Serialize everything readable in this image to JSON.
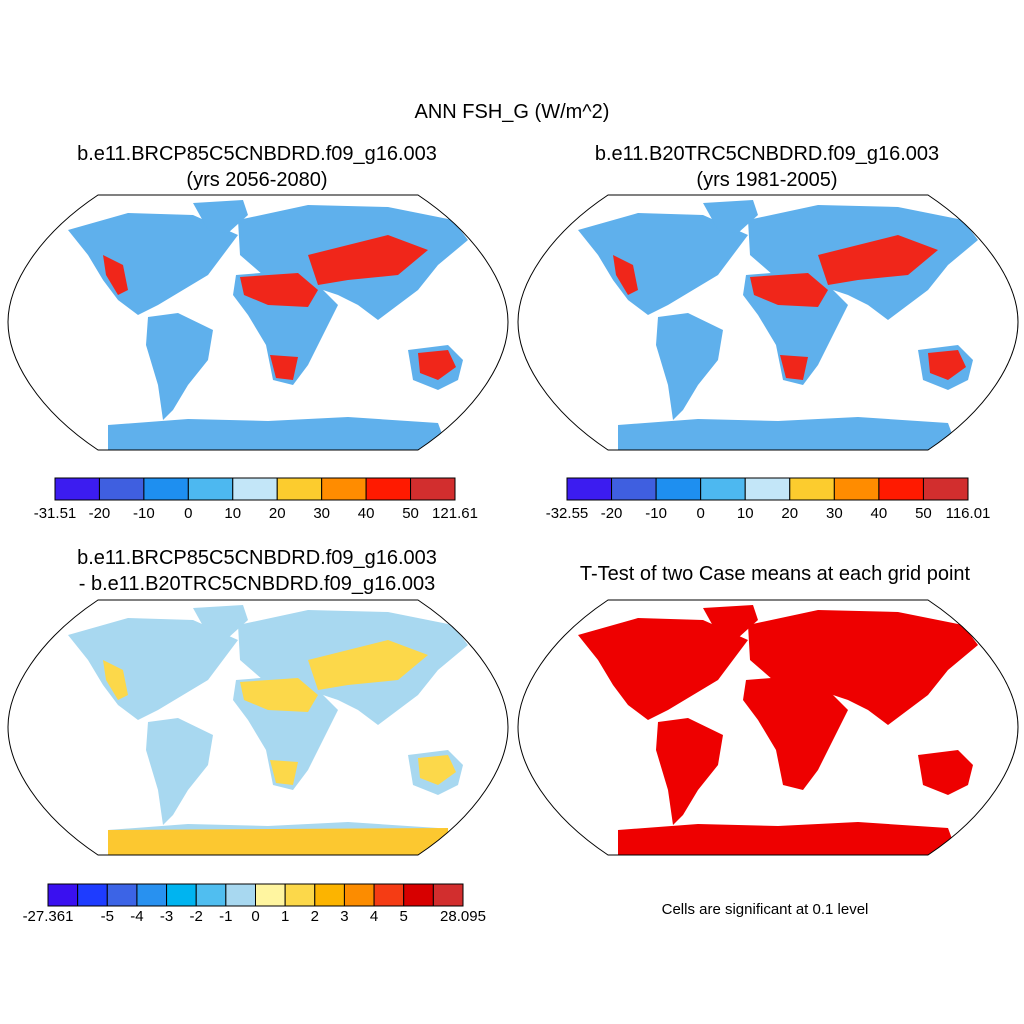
{
  "title": "ANN FSH_G (W/m^2)",
  "panels": [
    {
      "title": "b.e11.BRCP85C5CNBDRD.f09_g16.003",
      "subtitle": "(yrs 2056-2080)",
      "colorbar": {
        "colors": [
          "#3c1cf0",
          "#3f5fe0",
          "#1e8ff0",
          "#4db8f0",
          "#c3e6f8",
          "#fccc2e",
          "#ff8c00",
          "#ff1a00",
          "#d22e2e"
        ],
        "labels": [
          -31.51,
          -20,
          -10,
          0,
          10,
          20,
          30,
          40,
          50,
          121.61
        ]
      }
    },
    {
      "title": "b.e11.B20TRC5CNBDRD.f09_g16.003",
      "subtitle": "(yrs 1981-2005)",
      "colorbar": {
        "colors": [
          "#3c1cf0",
          "#3f5fe0",
          "#1e8ff0",
          "#4db8f0",
          "#c3e6f8",
          "#fccc2e",
          "#ff8c00",
          "#ff1a00",
          "#d22e2e"
        ],
        "labels": [
          -32.55,
          -20,
          -10,
          0,
          10,
          20,
          30,
          40,
          50,
          116.01
        ]
      }
    },
    {
      "title": "b.e11.BRCP85C5CNBDRD.f09_g16.003",
      "subtitle": "- b.e11.B20TRC5CNBDRD.f09_g16.003",
      "colorbar": {
        "colors": [
          "#3a10f0",
          "#1e3cff",
          "#3c64e6",
          "#2891f0",
          "#00b4f0",
          "#50bef0",
          "#a8d8f0",
          "#fff5a0",
          "#fcd84a",
          "#fcb400",
          "#fc8c00",
          "#f53c14",
          "#d70000",
          "#d22e2e"
        ],
        "labels": [
          -27.361,
          null,
          -5,
          -4,
          -3,
          -2,
          -1,
          0,
          1,
          2,
          3,
          4,
          5,
          null,
          28.095
        ]
      }
    },
    {
      "title": "T-Test of two Case means at each grid point",
      "note": "Cells are significant at 0.1 level"
    }
  ]
}
